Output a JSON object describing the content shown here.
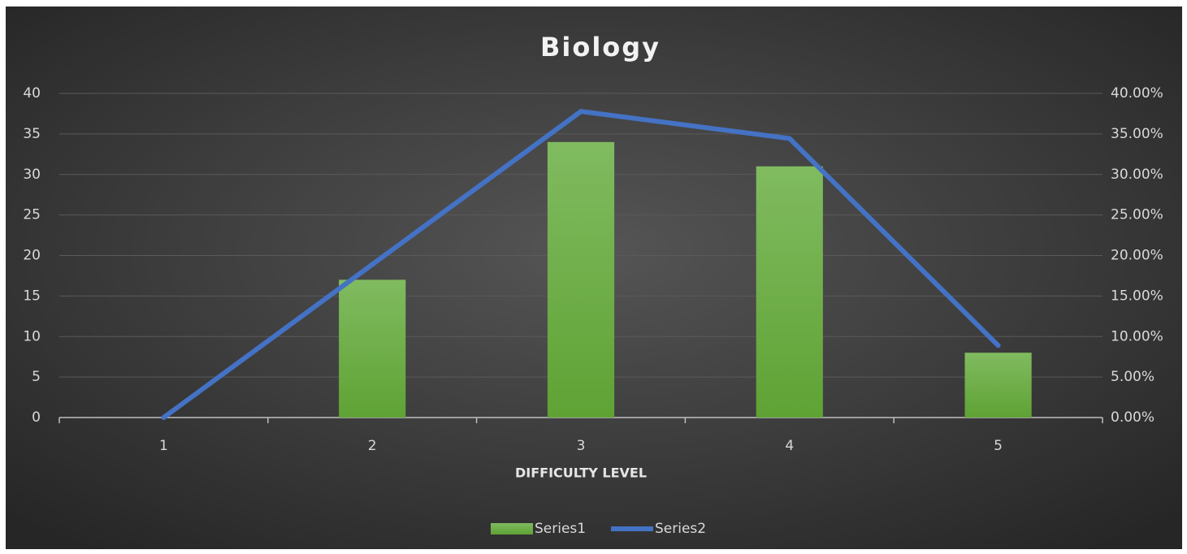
{
  "chart_data": {
    "type": "bar-line",
    "title": "Biology",
    "x_label": "DIFFICULTY LEVEL",
    "categories": [
      "1",
      "2",
      "3",
      "4",
      "5"
    ],
    "series": [
      {
        "name": "Series1",
        "type": "bar",
        "color": "#70ad47",
        "values": [
          0,
          17,
          34,
          31,
          8
        ]
      },
      {
        "name": "Series2",
        "type": "line",
        "axis": "y2",
        "color": "#4472c4",
        "values": [
          0,
          18.89,
          37.78,
          34.44,
          8.89
        ]
      }
    ],
    "ylim": [
      0,
      40
    ],
    "yticks": [
      0,
      5,
      10,
      15,
      20,
      25,
      30,
      35,
      40
    ],
    "y2lim": [
      0,
      40
    ],
    "y2ticks": [
      {
        "value": 0,
        "label": "0.00%"
      },
      {
        "value": 5,
        "label": "5.00%"
      },
      {
        "value": 10,
        "label": "10.00%"
      },
      {
        "value": 15,
        "label": "15.00%"
      },
      {
        "value": 20,
        "label": "20.00%"
      },
      {
        "value": 25,
        "label": "25.00%"
      },
      {
        "value": 30,
        "label": "30.00%"
      },
      {
        "value": 35,
        "label": "35.00%"
      },
      {
        "value": 40,
        "label": "40.00%"
      }
    ],
    "grid": true,
    "legend": "bottom"
  }
}
